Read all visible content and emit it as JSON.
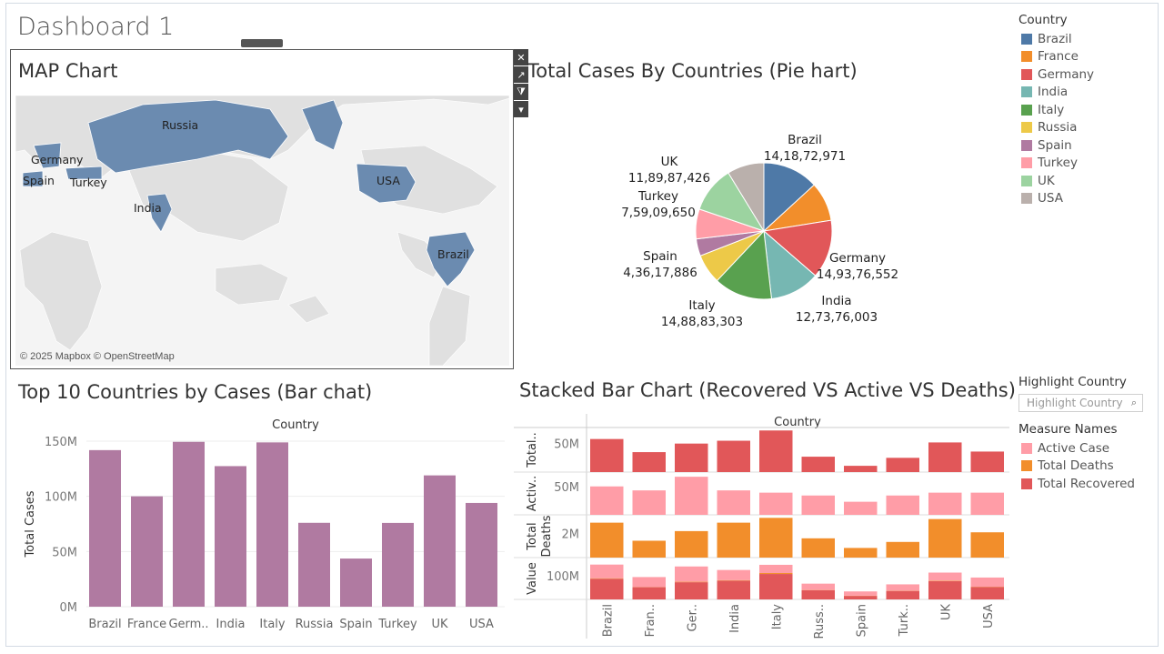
{
  "dashboard": {
    "title": "Dashboard 1"
  },
  "map": {
    "title": "MAP Chart",
    "attribution": "© 2025 Mapbox © OpenStreetMap",
    "labels": [
      "Russia",
      "Germany",
      "Spain",
      "Turkey",
      "India",
      "USA",
      "Brazil"
    ],
    "highlight_color": "#6b8bb0"
  },
  "pie": {
    "title": "Total Cases By Countries (Pie hart)"
  },
  "bar": {
    "title": "Top 10 Countries by Cases (Bar chat)"
  },
  "stacked": {
    "title": "Stacked Bar Chart (Recovered VS Active  VS Deaths)"
  },
  "legend": {
    "title": "Country",
    "items": [
      {
        "name": "Brazil",
        "color": "#4e79a7"
      },
      {
        "name": "France",
        "color": "#f28e2b"
      },
      {
        "name": "Germany",
        "color": "#e15759"
      },
      {
        "name": "India",
        "color": "#76b7b2"
      },
      {
        "name": "Italy",
        "color": "#59a14f"
      },
      {
        "name": "Russia",
        "color": "#edc948"
      },
      {
        "name": "Spain",
        "color": "#b07aa1"
      },
      {
        "name": "Turkey",
        "color": "#ff9da7"
      },
      {
        "name": "UK",
        "color": "#9cd3a0"
      },
      {
        "name": "USA",
        "color": "#bab0ac"
      }
    ]
  },
  "highlight": {
    "title": "Highlight Country",
    "placeholder": "Highlight Country",
    "icon": "search-icon"
  },
  "measure_legend": {
    "title": "Measure Names",
    "items": [
      {
        "name": "Active Case",
        "color": "#ff9da7"
      },
      {
        "name": "Total Deaths",
        "color": "#f28e2b"
      },
      {
        "name": "Total Recovered",
        "color": "#e15759"
      }
    ]
  },
  "chart_data": [
    {
      "type": "pie",
      "title": "Total Cases By Countries (Pie hart)",
      "slices": [
        {
          "name": "Brazil",
          "label": "14,18,72,971",
          "value": 141872971,
          "color": "#4e79a7"
        },
        {
          "name": "France",
          "label": "",
          "value": 100000000,
          "color": "#f28e2b"
        },
        {
          "name": "Germany",
          "label": "14,93,76,552",
          "value": 149376552,
          "color": "#e15759"
        },
        {
          "name": "India",
          "label": "12,73,76,003",
          "value": 127376003,
          "color": "#76b7b2"
        },
        {
          "name": "Italy",
          "label": "14,88,83,303",
          "value": 148883303,
          "color": "#59a14f"
        },
        {
          "name": "Russia",
          "label": "",
          "value": 76000000,
          "color": "#edc948"
        },
        {
          "name": "Spain",
          "label": "4,36,17,886",
          "value": 43617886,
          "color": "#b07aa1"
        },
        {
          "name": "Turkey",
          "label": "7,59,09,650",
          "value": 75909650,
          "color": "#ff9da7"
        },
        {
          "name": "UK",
          "label": "11,89,87,426",
          "value": 118987426,
          "color": "#9cd3a0"
        },
        {
          "name": "USA",
          "label": "",
          "value": 94000000,
          "color": "#bab0ac"
        }
      ]
    },
    {
      "type": "bar",
      "title": "Top 10 Countries by Cases (Bar chat)",
      "xlabel": "Country",
      "ylabel": "Total Cases",
      "categories": [
        "Brazil",
        "France",
        "Germ..",
        "India",
        "Italy",
        "Russia",
        "Spain",
        "Turkey",
        "UK",
        "USA"
      ],
      "values": [
        141872971,
        100000000,
        149376552,
        127376003,
        148883303,
        76000000,
        43617886,
        75909650,
        118987426,
        94000000
      ],
      "ylim": [
        0,
        150000000
      ],
      "yticks": [
        {
          "v": 0,
          "label": "0M"
        },
        {
          "v": 50000000,
          "label": "50M"
        },
        {
          "v": 100000000,
          "label": "100M"
        },
        {
          "v": 150000000,
          "label": "150M"
        }
      ],
      "color": "#b07aa1"
    },
    {
      "type": "bar",
      "title": "Stacked Bar Chart (Recovered VS Active  VS Deaths)",
      "xlabel": "Country",
      "categories": [
        "Brazil",
        "Fran..",
        "Ger..",
        "India",
        "Italy",
        "Russ..",
        "Spain",
        "Turk..",
        "UK",
        "USA"
      ],
      "rows": [
        {
          "label": "Total..",
          "tick": "50M",
          "tick_value": 50000000,
          "ymax": 75000000,
          "color": "#e15759",
          "values": [
            58000000,
            35000000,
            50000000,
            55000000,
            73000000,
            27000000,
            11000000,
            25000000,
            52000000,
            36000000
          ]
        },
        {
          "label": "Activ..",
          "tick": "50M",
          "tick_value": 50000000,
          "ymax": 72000000,
          "color": "#ff9da7",
          "values": [
            50000000,
            43000000,
            67000000,
            43000000,
            39000000,
            34000000,
            23000000,
            34000000,
            39000000,
            39000000
          ]
        },
        {
          "label": "Total Deaths",
          "tick": "2M",
          "tick_value": 2000000,
          "ymax": 3400000,
          "color": "#f28e2b",
          "values": [
            2900000,
            1400000,
            2200000,
            2900000,
            3300000,
            1600000,
            800000,
            1300000,
            3200000,
            2100000
          ]
        },
        {
          "label": "Value",
          "tick": "100M",
          "tick_value": 100000000,
          "ymax": 170000000,
          "stack": [
            {
              "name": "Total Recovered",
              "color": "#e15759",
              "values": [
                88000000,
                52000000,
                73000000,
                80000000,
                108000000,
                39000000,
                15000000,
                36000000,
                78000000,
                53000000
              ]
            },
            {
              "name": "Total Deaths",
              "color": "#f28e2b",
              "values": [
                2000000,
                1000000,
                2000000,
                2000000,
                4000000,
                1000000,
                1000000,
                1000000,
                2000000,
                1000000
              ]
            },
            {
              "name": "Active Case",
              "color": "#ff9da7",
              "values": [
                58000000,
                42000000,
                65000000,
                43000000,
                35000000,
                27000000,
                18000000,
                27000000,
                34000000,
                39000000
              ]
            }
          ]
        }
      ]
    }
  ]
}
